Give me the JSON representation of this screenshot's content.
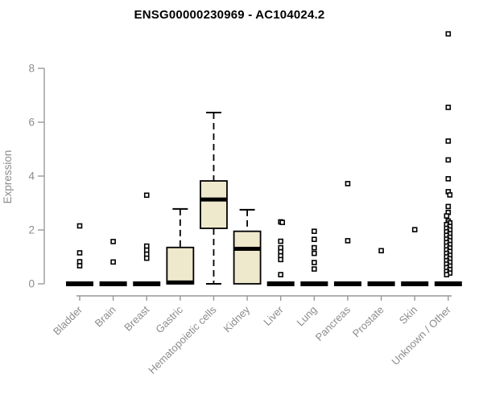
{
  "title": "ENSG00000230969 - AC104024.2",
  "chart_data": {
    "type": "boxplot",
    "title": "ENSG00000230969 - AC104024.2",
    "xlabel": "",
    "ylabel": "Expression",
    "ylim": [
      0,
      9.5
    ],
    "yticks": [
      0,
      2,
      4,
      6,
      8
    ],
    "grid": false,
    "legend": "none",
    "categories": [
      "Bladder",
      "Brain",
      "Breast",
      "Gastric",
      "Hematopoietic cells",
      "Kidney",
      "Liver",
      "Lung",
      "Pancreas",
      "Prostate",
      "Skin",
      "Unknown / Other"
    ],
    "boxes": [
      {
        "category": "Bladder",
        "q1": 0,
        "median": 0,
        "q3": 0,
        "whisker_low": 0,
        "whisker_high": 0,
        "outliers": [
          2.15,
          1.15,
          0.82,
          0.67
        ]
      },
      {
        "category": "Brain",
        "q1": 0,
        "median": 0,
        "q3": 0,
        "whisker_low": 0,
        "whisker_high": 0,
        "outliers": [
          1.57,
          0.81
        ]
      },
      {
        "category": "Breast",
        "q1": 0,
        "median": 0,
        "q3": 0,
        "whisker_low": 0,
        "whisker_high": 0,
        "outliers": [
          3.29,
          1.4,
          1.25,
          1.1,
          0.95
        ]
      },
      {
        "category": "Gastric",
        "q1": 0,
        "median": 0.05,
        "q3": 1.35,
        "whisker_low": 0,
        "whisker_high": 2.78,
        "outliers": []
      },
      {
        "category": "Hematopoietic cells",
        "q1": 2.06,
        "median": 3.13,
        "q3": 3.82,
        "whisker_low": 0,
        "whisker_high": 6.36,
        "outliers": []
      },
      {
        "category": "Kidney",
        "q1": 0,
        "median": 1.3,
        "q3": 1.95,
        "whisker_low": 0,
        "whisker_high": 2.75,
        "outliers": []
      },
      {
        "category": "Liver",
        "q1": 0,
        "median": 0,
        "q3": 0,
        "whisker_low": 0,
        "whisker_high": 0,
        "outliers": [
          2.3,
          2.28,
          1.58,
          1.34,
          1.19,
          1.04,
          0.9,
          0.34
        ]
      },
      {
        "category": "Lung",
        "q1": 0,
        "median": 0,
        "q3": 0,
        "whisker_low": 0,
        "whisker_high": 0,
        "outliers": [
          1.95,
          1.65,
          1.34,
          1.13,
          0.79,
          0.55
        ]
      },
      {
        "category": "Pancreas",
        "q1": 0,
        "median": 0,
        "q3": 0,
        "whisker_low": 0,
        "whisker_high": 0,
        "outliers": [
          3.72,
          1.6
        ]
      },
      {
        "category": "Prostate",
        "q1": 0,
        "median": 0,
        "q3": 0,
        "whisker_low": 0,
        "whisker_high": 0,
        "outliers": [
          1.23
        ]
      },
      {
        "category": "Skin",
        "q1": 0,
        "median": 0,
        "q3": 0,
        "whisker_low": 0,
        "whisker_high": 0,
        "outliers": [
          2.01
        ]
      },
      {
        "category": "Unknown / Other",
        "q1": 0,
        "median": 0,
        "q3": 0,
        "whisker_low": 0,
        "whisker_high": 0,
        "outliers": [
          9.28,
          6.55,
          5.3,
          4.6,
          3.9,
          3.42,
          3.3,
          2.87,
          2.65,
          2.52,
          2.33,
          2.26,
          2.2,
          2.13,
          2.06,
          2.0,
          1.93,
          1.86,
          1.8,
          1.73,
          1.66,
          1.6,
          1.53,
          1.46,
          1.4,
          1.33,
          1.26,
          1.2,
          1.13,
          1.06,
          1.0,
          0.93,
          0.86,
          0.8,
          0.73,
          0.66,
          0.6,
          0.53,
          0.46,
          0.4,
          0.34
        ]
      }
    ]
  },
  "styles": {
    "box_fill": "#EEE8CD",
    "box_stroke": "#000000",
    "median_color": "#000000",
    "outlier_fill": "#FFFFFF",
    "outlier_stroke": "#000000",
    "axis_color": "#999999",
    "tick_label_color": "#8C8C8C",
    "title_color": "#000000",
    "background": "#FFFFFF"
  }
}
